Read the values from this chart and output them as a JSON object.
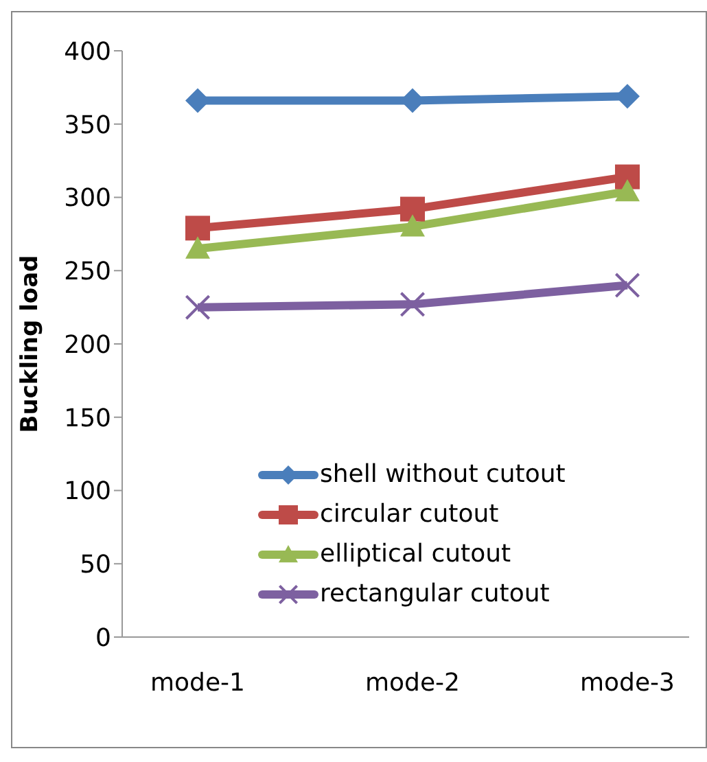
{
  "chart_data": {
    "type": "line",
    "ylabel": "Buckling load",
    "categories": [
      "mode-1",
      "mode-2",
      "mode-3"
    ],
    "series": [
      {
        "name": "shell without cutout",
        "color": "#4a7ebb",
        "marker": "diamond",
        "values": [
          366,
          366,
          369
        ]
      },
      {
        "name": "circular cutout",
        "color": "#be4b48",
        "marker": "square",
        "values": [
          279,
          292,
          314
        ]
      },
      {
        "name": "elliptical cutout",
        "color": "#98b954",
        "marker": "triangle",
        "values": [
          265,
          280,
          304
        ]
      },
      {
        "name": "rectangular cutout",
        "color": "#7d60a0",
        "marker": "cross",
        "values": [
          225,
          227,
          240
        ]
      }
    ],
    "ylim": [
      0,
      400
    ],
    "yticks": [
      0,
      50,
      100,
      150,
      200,
      250,
      300,
      350,
      400
    ],
    "grid": false,
    "legend": "bottom left"
  }
}
